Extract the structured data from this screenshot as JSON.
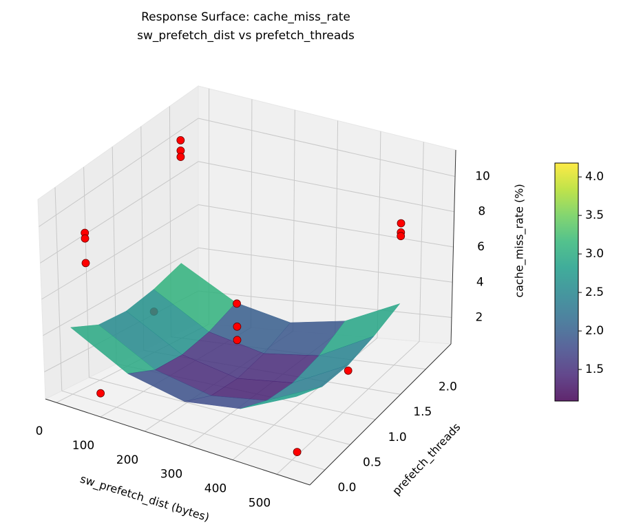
{
  "chart_data": {
    "type": "surface3d",
    "title": "Response Surface: cache_miss_rate",
    "subtitle": "sw_prefetch_dist vs prefetch_threads",
    "x_label": "sw_prefetch_dist (bytes)",
    "y_label": "prefetch_threads",
    "z_label": "cache_miss_rate (%)",
    "xlim": [
      -25,
      575
    ],
    "ylim": [
      -0.3,
      2.5
    ],
    "zlim": [
      0.5,
      11.5
    ],
    "xticks": [
      0,
      100,
      200,
      300,
      400,
      500
    ],
    "yticks": [
      {
        "value": 0,
        "label": "0.0"
      },
      0.5,
      {
        "value": 1,
        "label": "1.0"
      },
      1.5,
      {
        "value": 2,
        "label": "2.0"
      }
    ],
    "zticks": [
      2,
      4,
      6,
      8,
      10
    ],
    "surface": {
      "colormap": "viridis",
      "alpha": 0.85,
      "x": [
        0,
        128,
        256,
        384,
        512
      ],
      "y": [
        0,
        0.5,
        1,
        1.5,
        2
      ],
      "z": [
        [
          4.1,
          2.5,
          1.9,
          2.4,
          3.9
        ],
        [
          3.4,
          1.8,
          1.2,
          1.7,
          3.2
        ],
        [
          3.3,
          1.7,
          1.1,
          1.5,
          3.1
        ],
        [
          3.6,
          2.0,
          1.4,
          1.8,
          3.4
        ],
        [
          4.1,
          2.6,
          2.0,
          2.5,
          3.9
        ]
      ]
    },
    "points": {
      "color": "#ff0000",
      "x": [
        0,
        0,
        0,
        0,
        0,
        0,
        512,
        512,
        512,
        256,
        256,
        256,
        64,
        512,
        0,
        512
      ],
      "y": [
        0.3,
        0.3,
        0.3,
        2,
        2,
        2,
        2,
        2,
        2,
        1,
        1,
        1,
        0,
        0,
        1.5,
        1
      ],
      "z": [
        8.6,
        8.3,
        7.0,
        10.0,
        9.5,
        9.2,
        8.3,
        7.8,
        7.6,
        5.0,
        3.8,
        3.1,
        1.0,
        1.0,
        2.5,
        2.8
      ]
    },
    "colorbar": {
      "clim": [
        1.09,
        4.18
      ],
      "ticks": [
        1.5,
        {
          "value": 2,
          "label": "2.0"
        },
        2.5,
        {
          "value": 3,
          "label": "3.0"
        },
        3.5,
        {
          "value": 4,
          "label": "4.0"
        }
      ]
    }
  }
}
